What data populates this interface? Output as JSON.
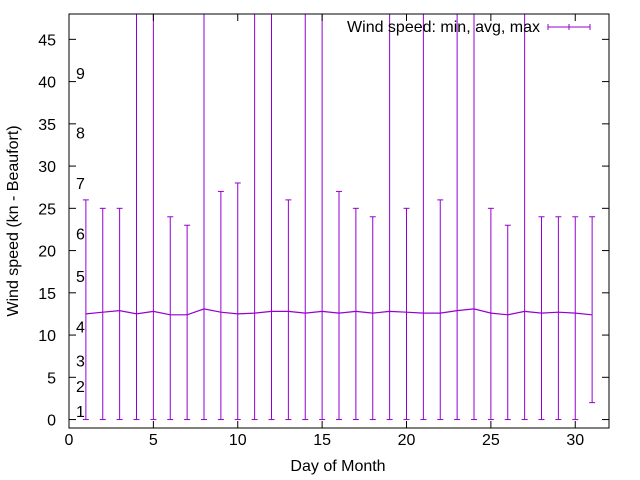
{
  "chart_data": {
    "type": "errorbar",
    "title": "",
    "xlabel": "Day of Month",
    "ylabel": "Wind speed (kn - Beaufort)",
    "xlim": [
      0,
      32
    ],
    "ylim": [
      -1,
      48
    ],
    "x_ticks": [
      0,
      5,
      10,
      15,
      20,
      25,
      30
    ],
    "y_ticks": [
      0,
      5,
      10,
      15,
      20,
      25,
      30,
      35,
      40,
      45
    ],
    "grid": false,
    "legend_position": "top-right",
    "beaufort_labels": [
      {
        "label": "1",
        "y": 1.0
      },
      {
        "label": "2",
        "y": 4.0
      },
      {
        "label": "3",
        "y": 7.0
      },
      {
        "label": "4",
        "y": 11.0
      },
      {
        "label": "5",
        "y": 17.0
      },
      {
        "label": "6",
        "y": 22.0
      },
      {
        "label": "7",
        "y": 28.0
      },
      {
        "label": "8",
        "y": 34.0
      },
      {
        "label": "9",
        "y": 41.0
      }
    ],
    "series": [
      {
        "name": "Wind speed: min, avg, max",
        "color": "#9400d3",
        "x": [
          1,
          2,
          3,
          4,
          5,
          6,
          7,
          8,
          9,
          10,
          11,
          12,
          13,
          14,
          15,
          16,
          17,
          18,
          19,
          20,
          21,
          22,
          23,
          24,
          25,
          26,
          27,
          28,
          29,
          30,
          31
        ],
        "min": [
          0,
          0,
          0,
          0,
          0,
          0,
          0,
          0,
          0,
          0,
          0,
          0,
          0,
          0,
          0,
          0,
          0,
          0,
          0,
          0,
          0,
          0,
          0,
          0,
          0,
          0,
          0,
          0,
          0,
          0,
          2
        ],
        "avg": [
          12.5,
          12.7,
          12.9,
          12.5,
          12.8,
          12.4,
          12.4,
          13.1,
          12.7,
          12.5,
          12.6,
          12.8,
          12.8,
          12.6,
          12.8,
          12.6,
          12.8,
          12.6,
          12.8,
          12.7,
          12.6,
          12.6,
          12.9,
          13.1,
          12.6,
          12.4,
          12.8,
          12.6,
          12.7,
          12.6,
          12.4
        ],
        "max": [
          26,
          25,
          25,
          60,
          60,
          24,
          23,
          60,
          27,
          28,
          60,
          60,
          26,
          60,
          60,
          27,
          25,
          24,
          60,
          25,
          60,
          26,
          60,
          60,
          25,
          23,
          60,
          24,
          24,
          24,
          24
        ]
      }
    ]
  }
}
